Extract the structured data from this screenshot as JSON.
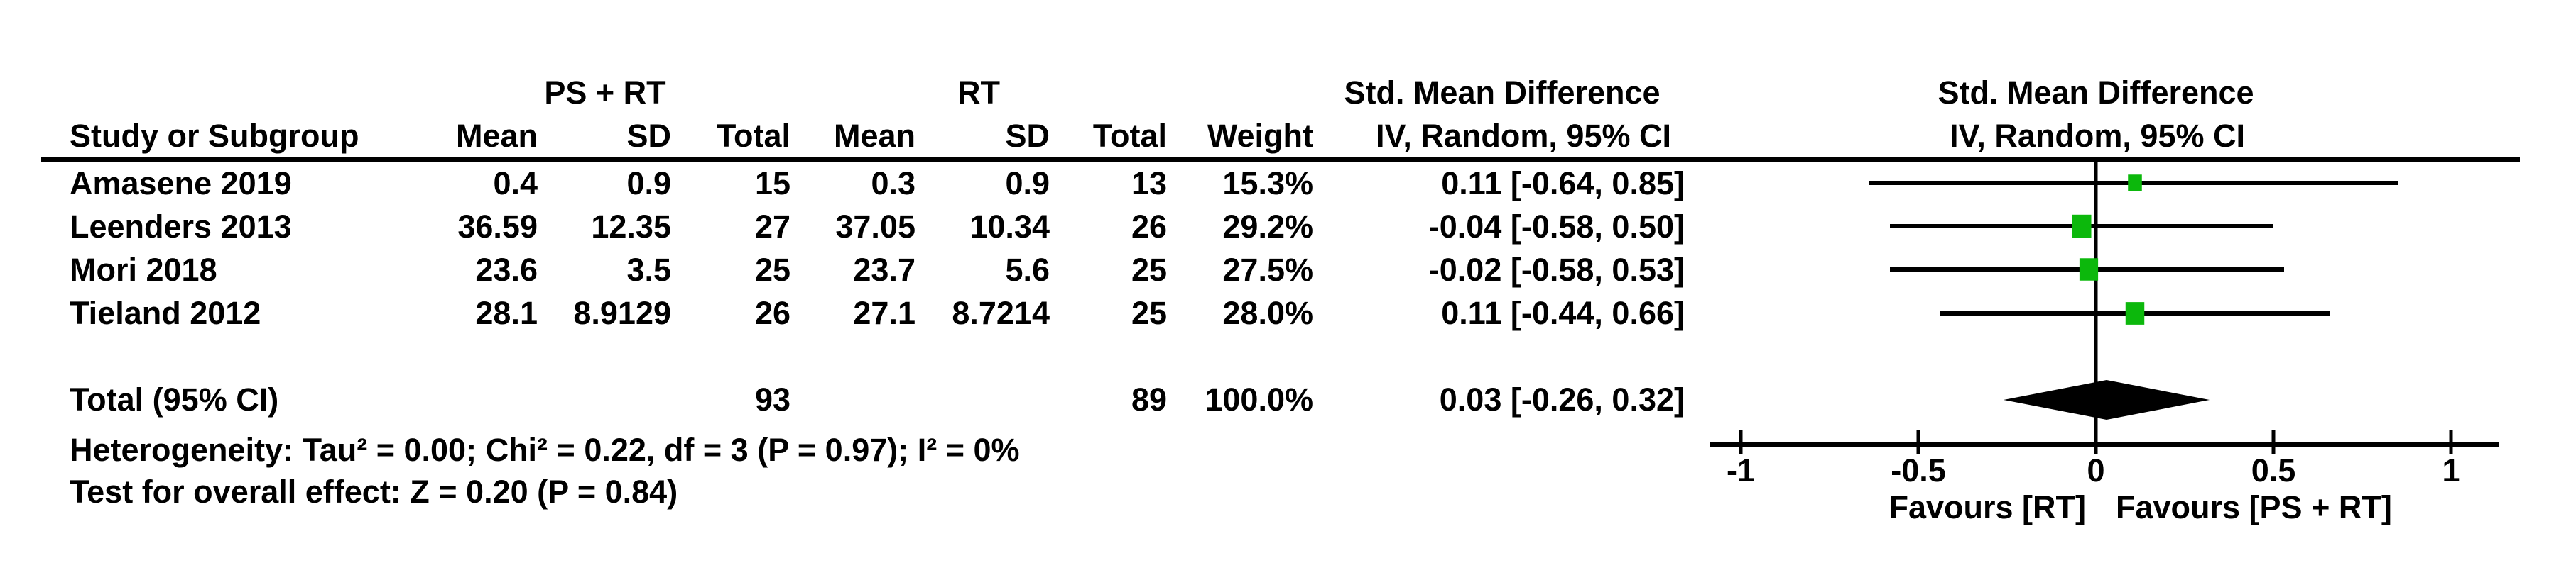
{
  "header": {
    "group_ps_rt": "PS + RT",
    "group_rt": "RT",
    "smd_line1": "Std. Mean Difference",
    "smd_line2": "IV, Random, 95% CI",
    "col_study": "Study or Subgroup",
    "col_mean": "Mean",
    "col_sd": "SD",
    "col_total": "Total",
    "col_weight": "Weight"
  },
  "table": {
    "rows": [
      {
        "study": "Amasene 2019",
        "ps_rt_mean": "0.4",
        "ps_rt_sd": "0.9",
        "ps_rt_total": "15",
        "rt_mean": "0.3",
        "rt_sd": "0.9",
        "rt_total": "13",
        "weight": "15.3%",
        "smd_ci": "0.11 [-0.64, 0.85]"
      },
      {
        "study": "Leenders 2013",
        "ps_rt_mean": "36.59",
        "ps_rt_sd": "12.35",
        "ps_rt_total": "27",
        "rt_mean": "37.05",
        "rt_sd": "10.34",
        "rt_total": "26",
        "weight": "29.2%",
        "smd_ci": "-0.04 [-0.58, 0.50]"
      },
      {
        "study": "Mori 2018",
        "ps_rt_mean": "23.6",
        "ps_rt_sd": "3.5",
        "ps_rt_total": "25",
        "rt_mean": "23.7",
        "rt_sd": "5.6",
        "rt_total": "25",
        "weight": "27.5%",
        "smd_ci": "-0.02 [-0.58, 0.53]"
      },
      {
        "study": "Tieland 2012",
        "ps_rt_mean": "28.1",
        "ps_rt_sd": "8.9129",
        "ps_rt_total": "26",
        "rt_mean": "27.1",
        "rt_sd": "8.7214",
        "rt_total": "25",
        "weight": "28.0%",
        "smd_ci": "0.11 [-0.44, 0.66]"
      }
    ],
    "total_row": {
      "label": "Total (95% CI)",
      "ps_rt_total": "93",
      "rt_total": "89",
      "weight": "100.0%",
      "smd_ci": "0.03 [-0.26, 0.32]"
    }
  },
  "footer": {
    "heterogeneity": "Heterogeneity: Tau² = 0.00; Chi² = 0.22, df = 3 (P = 0.97); I² = 0%",
    "overall_effect": "Test for overall effect: Z = 0.20 (P = 0.84)"
  },
  "chart_data": {
    "type": "scatter",
    "subtype": "forest-plot",
    "effect_measure": "Std. Mean Difference",
    "method": "IV, Random, 95% CI",
    "x_axis": {
      "min": -1,
      "max": 1,
      "ticks": [
        -1,
        -0.5,
        0,
        0.5,
        1
      ],
      "tick_labels": [
        "-1",
        "-0.5",
        "0",
        "0.5",
        "1"
      ]
    },
    "favours_left": "Favours [RT]",
    "favours_right": "Favours [PS + RT]",
    "marker_color": "#0cb80c",
    "line_color": "#000000",
    "studies": [
      {
        "name": "Amasene 2019",
        "estimate": 0.11,
        "ci_lower": -0.64,
        "ci_upper": 0.85,
        "weight_pct": 15.3
      },
      {
        "name": "Leenders 2013",
        "estimate": -0.04,
        "ci_lower": -0.58,
        "ci_upper": 0.5,
        "weight_pct": 29.2
      },
      {
        "name": "Mori 2018",
        "estimate": -0.02,
        "ci_lower": -0.58,
        "ci_upper": 0.53,
        "weight_pct": 27.5
      },
      {
        "name": "Tieland 2012",
        "estimate": 0.11,
        "ci_lower": -0.44,
        "ci_upper": 0.66,
        "weight_pct": 28.0
      }
    ],
    "total": {
      "label": "Total (95% CI)",
      "estimate": 0.03,
      "ci_lower": -0.26,
      "ci_upper": 0.32,
      "weight_pct": 100.0
    }
  }
}
